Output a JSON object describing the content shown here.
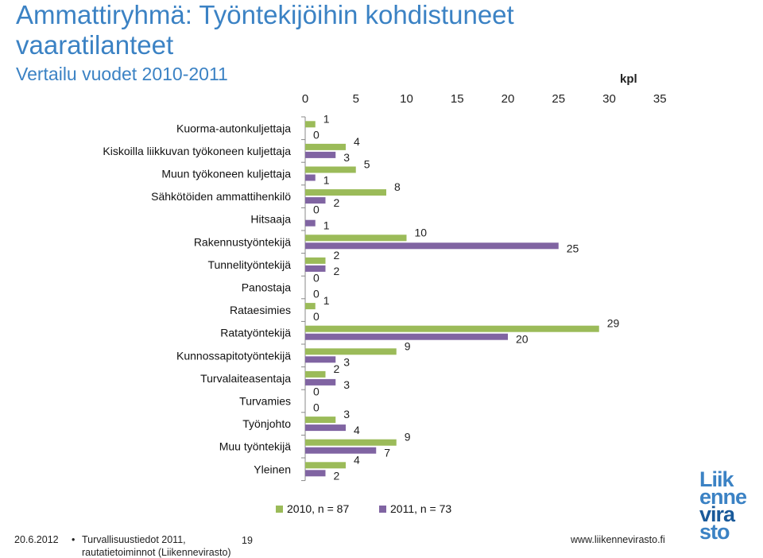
{
  "header": {
    "title": "Ammattiryhmä: Työntekijöihin kohdistuneet vaaratilanteet",
    "subtitle": "Vertailu vuodet 2010-2011"
  },
  "chart_data": {
    "type": "bar",
    "orientation": "horizontal",
    "unit_label": "kpl",
    "xlim": [
      0,
      35
    ],
    "x_ticks": [
      0,
      5,
      10,
      15,
      20,
      25,
      30,
      35
    ],
    "categories": [
      "Kuorma-autonkuljettaja",
      "Kiskoilla liikkuvan työkoneen kuljettaja",
      "Muun työkoneen kuljettaja",
      "Sähkötöiden ammattihenkilö",
      "Hitsaaja",
      "Rakennustyöntekijä",
      "Tunnelityöntekijä",
      "Panostaja",
      "Rataesimies",
      "Ratatyöntekijä",
      "Kunnossapitotyöntekijä",
      "Turvalaiteasentaja",
      "Turvamies",
      "Työnjohto",
      "Muu työntekijä",
      "Yleinen"
    ],
    "series": [
      {
        "name": "2010, n = 87",
        "color": "#9bbb59",
        "values": [
          1,
          4,
          5,
          8,
          0,
          10,
          2,
          0,
          1,
          29,
          9,
          2,
          0,
          3,
          9,
          4
        ]
      },
      {
        "name": "2011, n = 73",
        "color": "#8064a2",
        "values": [
          0,
          3,
          1,
          2,
          1,
          25,
          2,
          0,
          0,
          20,
          3,
          3,
          0,
          4,
          7,
          2
        ]
      }
    ],
    "legend_position": "bottom",
    "grid": false
  },
  "footer": {
    "date": "20.6.2012",
    "bullet": "•",
    "source_line1": "Turvallisuustiedot 2011,",
    "source_line2": "rautatietoiminnot (Liikennevirasto)",
    "page_number": "19",
    "website": "www.liikennevirasto.fi"
  },
  "logo": {
    "lines": [
      "Liik",
      "enne",
      "vira",
      "sto"
    ],
    "colors": [
      "#3b82c4",
      "#3b82c4",
      "#1a5a9a",
      "#3b82c4"
    ]
  }
}
